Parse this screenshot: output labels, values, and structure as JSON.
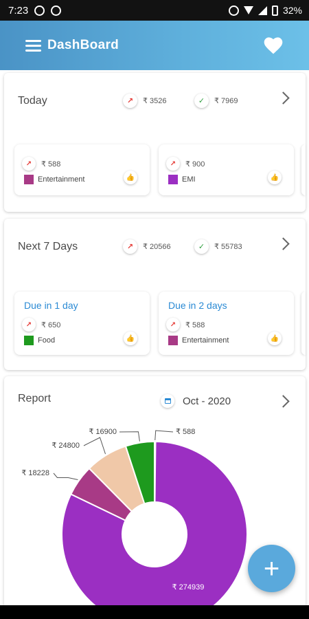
{
  "status_bar": {
    "time": "7:23",
    "battery": "32%"
  },
  "app_bar": {
    "title": "DashBoard"
  },
  "today": {
    "title": "Today",
    "expense": "₹ 3526",
    "income": "₹ 7969",
    "items": [
      {
        "amount": "₹ 588",
        "category": "Entertainment",
        "color": "#a83a86"
      },
      {
        "amount": "₹ 900",
        "category": "EMI",
        "color": "#9b2fc2"
      }
    ]
  },
  "next7": {
    "title": "Next 7 Days",
    "expense": "₹ 20566",
    "income": "₹ 55783",
    "items": [
      {
        "due": "Due in 1 day",
        "amount": "₹ 650",
        "category": "Food",
        "color": "#1e9a1e"
      },
      {
        "due": "Due in 2 days",
        "amount": "₹ 588",
        "category": "Entertainment",
        "color": "#a83a86"
      }
    ]
  },
  "report": {
    "title": "Report",
    "period": "Oct - 2020"
  },
  "chart_data": {
    "type": "pie",
    "donut": true,
    "values": [
      274939,
      18228,
      24800,
      16900,
      588
    ],
    "labels": [
      "₹ 274939",
      "₹ 18228",
      "₹ 24800",
      "₹ 16900",
      "₹ 588"
    ],
    "colors": [
      "#9b2fc2",
      "#a83a86",
      "#f0c8a8",
      "#1e9a1e",
      "#d94b9a"
    ],
    "legend": "none"
  },
  "icons": {
    "menu": "menu-icon",
    "favorite": "heart-icon",
    "expense": "trending-up-icon",
    "income": "checkmark-icon",
    "like": "thumbs-up-icon",
    "calendar": "calendar-icon",
    "more": "chevron-right-icon",
    "add": "plus-icon"
  },
  "fab": {
    "label": "+"
  }
}
